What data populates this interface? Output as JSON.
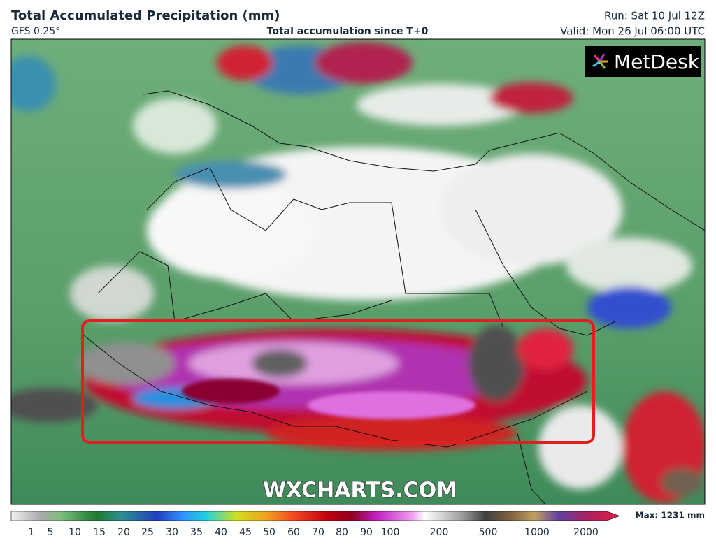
{
  "header": {
    "title": "Total Accumulated Precipitation (mm)",
    "model": "GFS 0.25°",
    "subtitle": "Total accumulation since T+0",
    "run": "Run: Sat 10 Jul 12Z",
    "valid": "Valid: Mon 26 Jul 06:00 UTC"
  },
  "map": {
    "logo": "MetDesk",
    "watermark": "WXCHARTS.COM"
  },
  "legend": {
    "ticks": [
      1,
      5,
      10,
      15,
      20,
      25,
      30,
      35,
      40,
      45,
      50,
      60,
      70,
      80,
      90,
      100,
      200,
      500,
      1000,
      2000
    ],
    "max": "Max: 1231 mm"
  }
}
